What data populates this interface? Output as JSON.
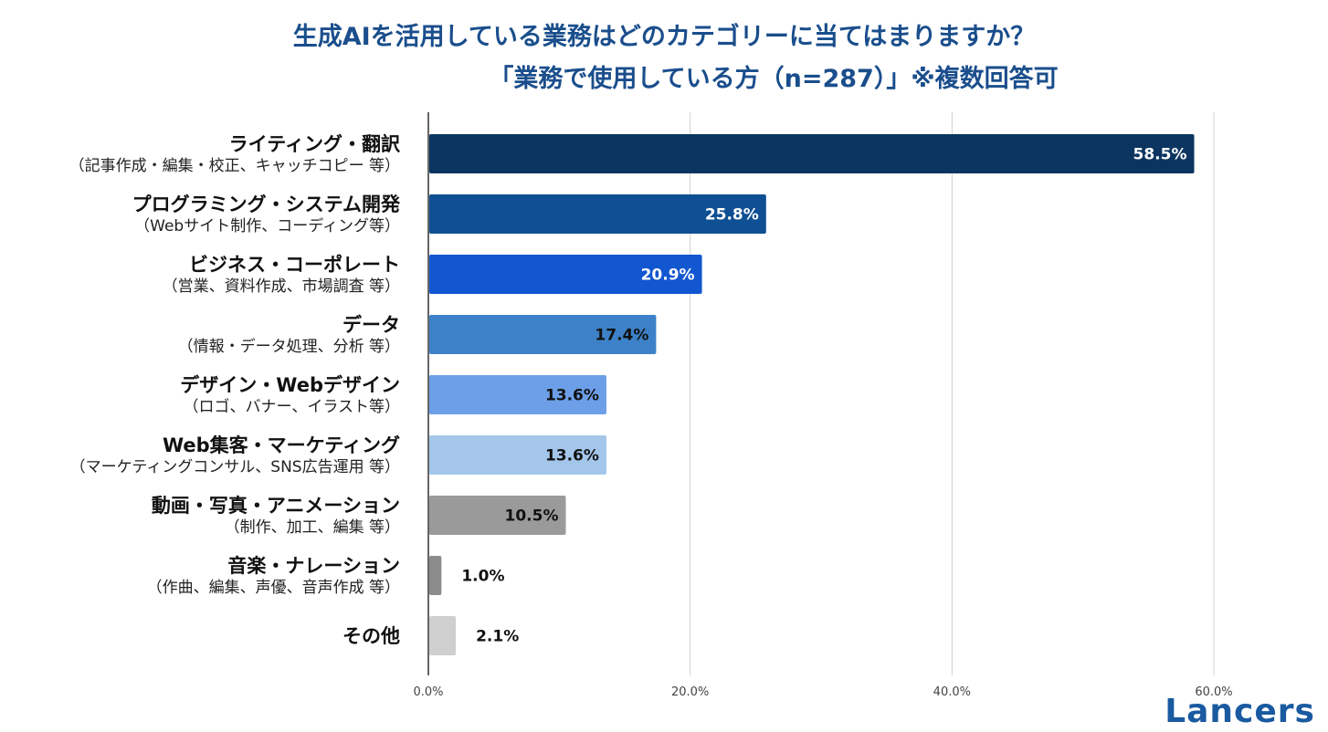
{
  "header": {
    "title_line1": "生成AIを活用している業務はどのカテゴリーに当てはまりますか？",
    "title_line2": "「業務で使用している方（n=287）」※複数回答可"
  },
  "logo": {
    "text": "Lancers"
  },
  "chart_data": {
    "type": "bar",
    "orientation": "horizontal",
    "categories": [
      {
        "label": "ライティング・翻訳",
        "sublabel": "（記事作成・編集・校正、キャッチコピー 等）"
      },
      {
        "label": "プログラミング・システム開発",
        "sublabel": "（Webサイト制作、コーディング等）"
      },
      {
        "label": "ビジネス・コーポレート",
        "sublabel": "（営業、資料作成、市場調査 等）"
      },
      {
        "label": "データ",
        "sublabel": "（情報・データ処理、分析 等）"
      },
      {
        "label": "デザイン・Webデザイン",
        "sublabel": "（ロゴ、バナー、イラスト等）"
      },
      {
        "label": "Web集客・マーケティング",
        "sublabel": "（マーケティングコンサル、SNS広告運用 等）"
      },
      {
        "label": "動画・写真・アニメーション",
        "sublabel": "（制作、加工、編集 等）"
      },
      {
        "label": "音楽・ナレーション",
        "sublabel": "（作曲、編集、声優、音声作成 等）"
      },
      {
        "label": "その他",
        "sublabel": ""
      }
    ],
    "values": [
      58.5,
      25.8,
      20.9,
      17.4,
      13.6,
      13.6,
      10.5,
      1.0,
      2.1
    ],
    "value_labels": [
      "58.5%",
      "25.8%",
      "20.9%",
      "17.4%",
      "13.6%",
      "13.6%",
      "10.5%",
      "1.0%",
      "2.1%"
    ],
    "colors": [
      "#0b3560",
      "#0f4f93",
      "#1257d0",
      "#3d82c8",
      "#6c9fe8",
      "#a3c6ea",
      "#9a9a9a",
      "#8c8c8c",
      "#cfcfcf"
    ],
    "label_colors": [
      "#ffffff",
      "#ffffff",
      "#ffffff",
      "#111111",
      "#111111",
      "#111111",
      "#111111",
      "#111111",
      "#111111"
    ],
    "xlim": [
      0,
      60
    ],
    "xticks": [
      0,
      20,
      40,
      60
    ],
    "xtick_labels": [
      "0.0%",
      "20.0%",
      "40.0%",
      "60.0%"
    ],
    "grid": true
  }
}
